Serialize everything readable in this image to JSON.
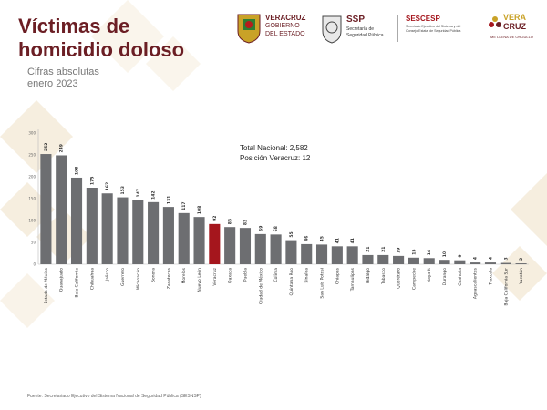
{
  "header": {
    "title_line1": "Víctimas de",
    "title_line2": "homicidio doloso",
    "subtitle_line1": "Cifras absolutas",
    "subtitle_line2": "enero 2023"
  },
  "logos": {
    "veracruz_gob": [
      "VERACRUZ",
      "GOBIERNO",
      "DEL ESTADO"
    ],
    "ssp": [
      "SSP",
      "Secretaría de",
      "Seguridad Pública"
    ],
    "sescesp": [
      "SESCESP",
      "Secretario Ejecutivo del Sistema y del",
      "Consejo Estatal de Seguridad Pública"
    ],
    "veracruz_brand": [
      "VERA",
      "CRUZ",
      "ME LLENA DE ORGULLO"
    ]
  },
  "summary": {
    "total_line": "Total Nacional: 2,582",
    "position_line": "Posición Veracruz: 12"
  },
  "source": "Fuente: Secretariado Ejecutivo del Sistema Nacional de Seguridad Pública (SESNSP)",
  "colors": {
    "bar": "#6d6e71",
    "highlight": "#a5161d",
    "title": "#6b1e24",
    "decor": "#f4ead6"
  },
  "chart_data": {
    "type": "bar",
    "ylim": [
      0,
      300
    ],
    "yticks": [
      0,
      50,
      100,
      150,
      200,
      250,
      300
    ],
    "highlight_category": "Veracruz",
    "categories": [
      "Estado de México",
      "Guanajuato",
      "Baja California",
      "Chihuahua",
      "Jalisco",
      "Guerrero",
      "Michoacán",
      "Sonora",
      "Zacatecas",
      "Morelos",
      "Nuevo León",
      "Veracruz",
      "Oaxaca",
      "Puebla",
      "Ciudad de México",
      "Colima",
      "Quintana Roo",
      "Sinaloa",
      "San Luis Potosí",
      "Chiapas",
      "Tamaulipas",
      "Hidalgo",
      "Tabasco",
      "Querétaro",
      "Campeche",
      "Nayarit",
      "Durango",
      "Coahuila",
      "Aguascalientes",
      "Tlaxcala",
      "Baja California Sur",
      "Yucatán"
    ],
    "values": [
      252,
      249,
      198,
      175,
      162,
      153,
      147,
      142,
      131,
      117,
      108,
      92,
      85,
      83,
      69,
      68,
      55,
      46,
      45,
      41,
      41,
      21,
      21,
      19,
      15,
      14,
      10,
      9,
      4,
      4,
      3,
      2
    ]
  }
}
